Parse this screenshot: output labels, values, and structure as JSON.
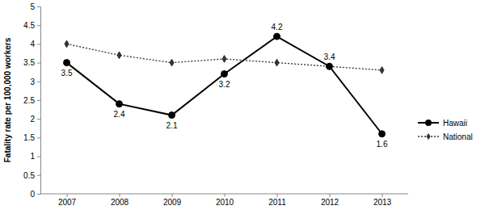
{
  "chart_data": {
    "type": "line",
    "y_label": "Fatality rate per 100,000 workers",
    "categories": [
      "2007",
      "2008",
      "2009",
      "2010",
      "2011",
      "2012",
      "2013"
    ],
    "ylim": [
      0,
      5
    ],
    "yticks": [
      0,
      0.5,
      1,
      1.5,
      2,
      2.5,
      3,
      3.5,
      4,
      4.5,
      5
    ],
    "grid": false,
    "legend": "right",
    "series": [
      {
        "name": "Hawaii",
        "color": "#000000",
        "marker": "circle",
        "line_style": "solid",
        "data_labels": true,
        "values": [
          3.5,
          2.4,
          2.1,
          3.2,
          4.2,
          3.4,
          1.6
        ]
      },
      {
        "name": "National",
        "color": "#333333",
        "marker": "diamond",
        "line_style": "dotted",
        "values": [
          4.0,
          3.7,
          3.5,
          3.6,
          3.5,
          3.4,
          3.3
        ]
      }
    ]
  }
}
